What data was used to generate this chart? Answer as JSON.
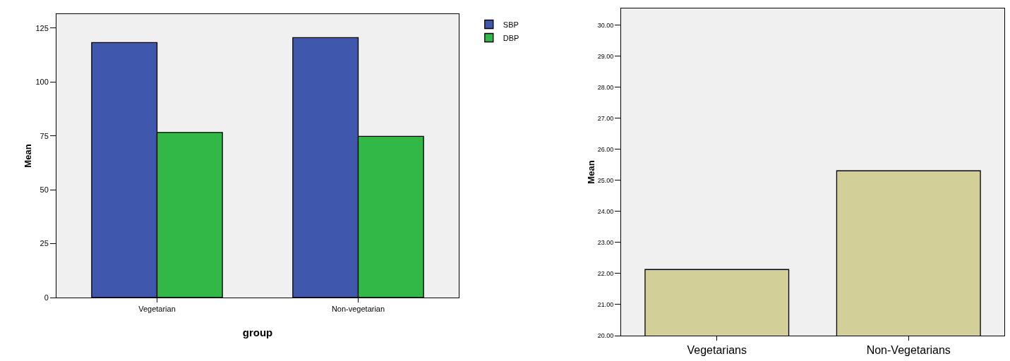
{
  "chart_data": [
    {
      "type": "bar",
      "xlabel": "group",
      "ylabel": "Mean",
      "categories": [
        "Vegetarian",
        "Non-vegetarian"
      ],
      "series": [
        {
          "name": "SBP",
          "color": "#3f58ad",
          "values": [
            118.3,
            120.6
          ]
        },
        {
          "name": "DBP",
          "color": "#31b847",
          "values": [
            76.6,
            74.8
          ]
        }
      ],
      "ylim": [
        0,
        131.5
      ],
      "yticks": [
        0,
        25,
        50,
        75,
        100,
        125
      ],
      "grid": false,
      "legend": "top right"
    },
    {
      "type": "bar",
      "ylabel": "Mean",
      "categories": [
        "Vegetarians",
        "Non-Vegetarians"
      ],
      "values": [
        22.13,
        25.31
      ],
      "color": "#d3cf98",
      "ylim": [
        20,
        30.54
      ],
      "yticks": [
        {
          "value": 20,
          "label": "20.00"
        },
        {
          "value": 21,
          "label": "21.00"
        },
        {
          "value": 22,
          "label": "22.00"
        },
        {
          "value": 23,
          "label": "23.00"
        },
        {
          "value": 24,
          "label": "24.00"
        },
        {
          "value": 25,
          "label": "25.00"
        },
        {
          "value": 26,
          "label": "26.00"
        },
        {
          "value": 27,
          "label": "27.00"
        },
        {
          "value": 28,
          "label": "28.00"
        },
        {
          "value": 29,
          "label": "29.00"
        },
        {
          "value": 30,
          "label": "30.00"
        }
      ],
      "grid": false
    }
  ]
}
